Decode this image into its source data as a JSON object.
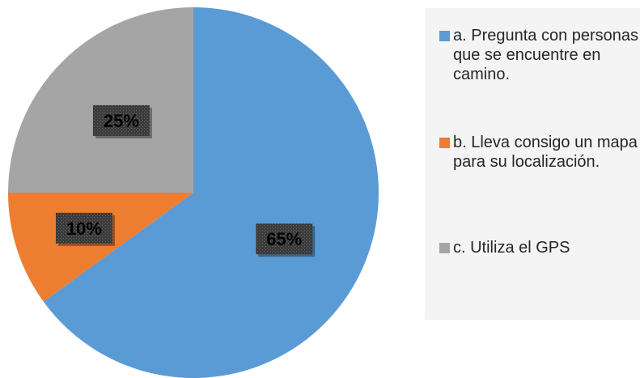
{
  "chart_data": {
    "type": "pie",
    "start_angle_deg": 0,
    "direction": "clockwise",
    "slices": [
      {
        "label": "a. Pregunta con personas que se encuentre en camino.",
        "value": 65,
        "display": "65%",
        "color": "#5b9bd5"
      },
      {
        "label": "b. Lleva consigo un mapa para su localización.",
        "value": 10,
        "display": "10%",
        "color": "#ed7d31"
      },
      {
        "label": "c. Utiliza el GPS",
        "value": 25,
        "display": "25%",
        "color": "#a5a5a5"
      }
    ],
    "legend_position": "right",
    "data_label_style": "dark-patterned-box"
  }
}
